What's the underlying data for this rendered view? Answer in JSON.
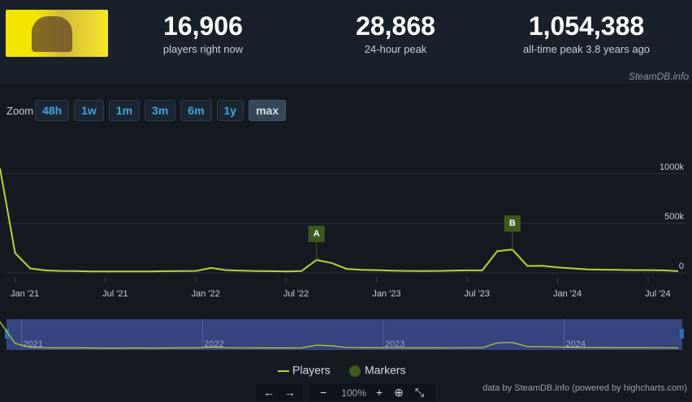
{
  "header": {
    "stats": [
      {
        "value": "16,906",
        "label": "players right now"
      },
      {
        "value": "28,868",
        "label": "24-hour peak"
      },
      {
        "value": "1,054,388",
        "label": "all-time peak 3.8 years ago"
      }
    ],
    "brand": "SteamDB.info"
  },
  "zoom": {
    "label": "Zoom",
    "buttons": [
      "48h",
      "1w",
      "1m",
      "3m",
      "6m",
      "1y",
      "max"
    ]
  },
  "chart_data": {
    "type": "line",
    "x": [
      "2020-12",
      "2021-01",
      "2021-02",
      "2021-03",
      "2021-04",
      "2021-05",
      "2021-06",
      "2021-07",
      "2021-08",
      "2021-09",
      "2021-10",
      "2021-11",
      "2021-12",
      "2022-01",
      "2022-02",
      "2022-03",
      "2022-04",
      "2022-05",
      "2022-06",
      "2022-07",
      "2022-08",
      "2022-09",
      "2022-10",
      "2022-11",
      "2022-12",
      "2023-01",
      "2023-02",
      "2023-03",
      "2023-04",
      "2023-05",
      "2023-06",
      "2023-07",
      "2023-08",
      "2023-09",
      "2023-10",
      "2023-11",
      "2023-12",
      "2024-01",
      "2024-02",
      "2024-03",
      "2024-04",
      "2024-05",
      "2024-06",
      "2024-07",
      "2024-08",
      "2024-09"
    ],
    "series": [
      {
        "name": "Players",
        "color": "#b9d532",
        "values": [
          1054388,
          200000,
          45000,
          25000,
          20000,
          18000,
          15000,
          14000,
          14000,
          15000,
          14000,
          17000,
          18000,
          20000,
          50000,
          28000,
          22000,
          18000,
          17000,
          15000,
          18000,
          130000,
          100000,
          40000,
          30000,
          28000,
          22000,
          20000,
          18000,
          20000,
          22000,
          25000,
          25000,
          220000,
          235000,
          70000,
          72000,
          55000,
          45000,
          35000,
          32000,
          30000,
          28000,
          28000,
          25000,
          16906
        ]
      }
    ],
    "markers": {
      "name": "Markers",
      "color": "#3d5a1e",
      "items": [
        {
          "label": "A",
          "x": "2022-09"
        },
        {
          "label": "B",
          "x": "2023-10"
        }
      ]
    },
    "xlim": [
      "2020-12",
      "2024-09"
    ],
    "xticks": [
      {
        "value": "2021-01",
        "label": "Jan '21"
      },
      {
        "value": "2021-07",
        "label": "Jul '21"
      },
      {
        "value": "2022-01",
        "label": "Jan '22"
      },
      {
        "value": "2022-07",
        "label": "Jul '22"
      },
      {
        "value": "2023-01",
        "label": "Jan '23"
      },
      {
        "value": "2023-07",
        "label": "Jul '23"
      },
      {
        "value": "2024-01",
        "label": "Jan '24"
      },
      {
        "value": "2024-07",
        "label": "Jul '24"
      }
    ],
    "ylim": [
      0,
      1100000
    ],
    "yticks": [
      0,
      {
        "value": 500000,
        "label": "500k"
      },
      {
        "value": 1000000,
        "label": "1000k"
      }
    ],
    "grid": true,
    "navigator": {
      "labels": [
        {
          "value": "2021-01",
          "label": "2021"
        },
        {
          "value": "2022-01",
          "label": "2022"
        },
        {
          "value": "2023-01",
          "label": "2023"
        },
        {
          "value": "2024-01",
          "label": "2024"
        }
      ]
    },
    "credits": "data by SteamDB.info (powered by highcharts.com)"
  },
  "toolbar": {
    "zoom_level": "100%"
  }
}
